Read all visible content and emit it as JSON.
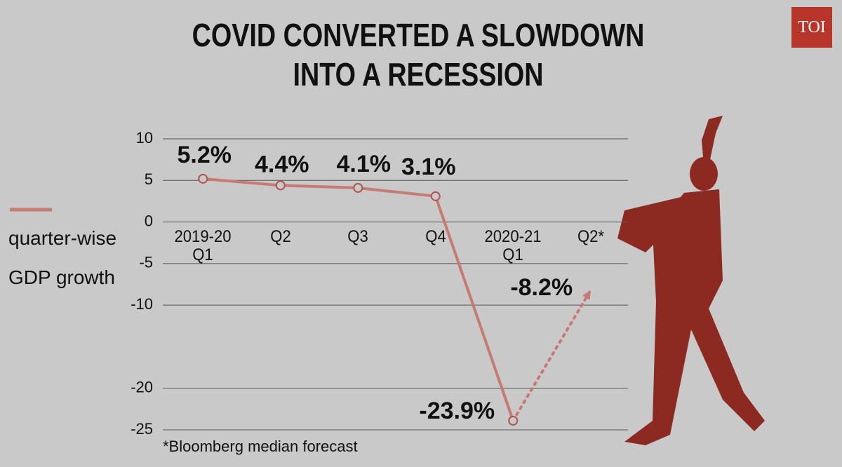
{
  "logo": "TOI",
  "chart_data": {
    "type": "line",
    "title": "COVID CONVERTED A SLOWDOWN INTO A RECESSION",
    "note": "*Bloomberg median forecast",
    "categories": [
      "2019-20 Q1",
      "Q2",
      "Q3",
      "Q4",
      "2020-21 Q1",
      "Q2*"
    ],
    "series": [
      {
        "name": "quarter-wise GDP growth",
        "color": "#c77a71",
        "values": [
          5.2,
          4.4,
          4.1,
          3.1,
          -23.9,
          -8.2
        ],
        "value_labels": [
          "5.2%",
          "4.4%",
          "4.1%",
          "3.1%",
          "-23.9%",
          "-8.2%"
        ]
      }
    ],
    "ylim": [
      -25,
      10
    ],
    "yticks": [
      10,
      5,
      0,
      -5,
      -10,
      -20,
      -25
    ],
    "grid": true
  }
}
